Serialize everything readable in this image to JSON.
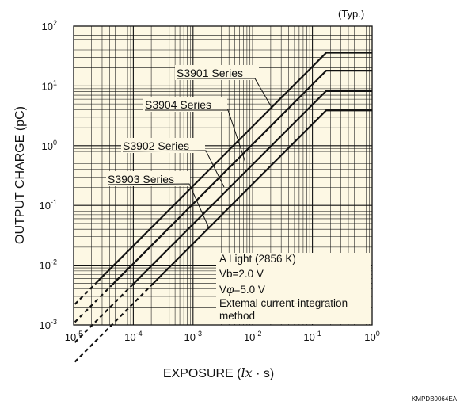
{
  "chart_data": {
    "type": "line",
    "title": "",
    "typ_label": "(Typ.)",
    "xlabel_pre": "EXPOSURE (",
    "xlabel_var": "lx",
    "xlabel_post": " · s)",
    "ylabel": "OUTPUT CHARGE (pC)",
    "xscale": "log",
    "yscale": "log",
    "xlim": [
      1e-05,
      1
    ],
    "ylim": [
      0.001,
      100
    ],
    "grid": true,
    "background": "#fdf8e4",
    "line_color": "#111111",
    "x_ticks": [
      {
        "base": "10",
        "exp": "-5",
        "value": 1e-05
      },
      {
        "base": "10",
        "exp": "-4",
        "value": 0.0001
      },
      {
        "base": "10",
        "exp": "-3",
        "value": 0.001
      },
      {
        "base": "10",
        "exp": "-2",
        "value": 0.01
      },
      {
        "base": "10",
        "exp": "-1",
        "value": 0.1
      },
      {
        "base": "10",
        "exp": "0",
        "value": 1
      }
    ],
    "y_ticks": [
      {
        "base": "10",
        "exp": "-3",
        "value": 0.001
      },
      {
        "base": "10",
        "exp": "-2",
        "value": 0.01
      },
      {
        "base": "10",
        "exp": "-1",
        "value": 0.1
      },
      {
        "base": "10",
        "exp": "0",
        "value": 1
      },
      {
        "base": "10",
        "exp": "1",
        "value": 10
      },
      {
        "base": "10",
        "exp": "2",
        "value": 100
      }
    ],
    "series": [
      {
        "name": "S3901 Series",
        "dashed_x": [
          1.05e-05,
          2.35e-05
        ],
        "x": [
          2.35e-05,
          0.17,
          1
        ],
        "y": [
          0.00497,
          35.9,
          35.9
        ]
      },
      {
        "name": "S3904 Series",
        "dashed_x": [
          1.05e-05,
          4.38e-05
        ],
        "x": [
          4.38e-05,
          0.17,
          1
        ],
        "y": [
          0.00465,
          18.0,
          18.0
        ]
      },
      {
        "name": "S3902 Series",
        "dashed_x": [
          1.05e-05,
          9.59e-05
        ],
        "x": [
          9.59e-05,
          0.17,
          1
        ],
        "y": [
          0.00465,
          8.25,
          8.25
        ]
      },
      {
        "name": "S3903 Series",
        "dashed_x": [
          1.05e-05,
          0.000193
        ],
        "x": [
          0.000193,
          0.17,
          1
        ],
        "y": [
          0.00443,
          3.9,
          3.9
        ]
      }
    ],
    "annotation": {
      "line1": "A Light (2856 K)",
      "line2": "Vb=2.0 V",
      "line3_pre": "V",
      "line3_sym": "φ",
      "line3_post": "=5.0 V",
      "line4": "Extemal current-integration",
      "line5": "method"
    },
    "code": "KMPDB0064EA"
  }
}
